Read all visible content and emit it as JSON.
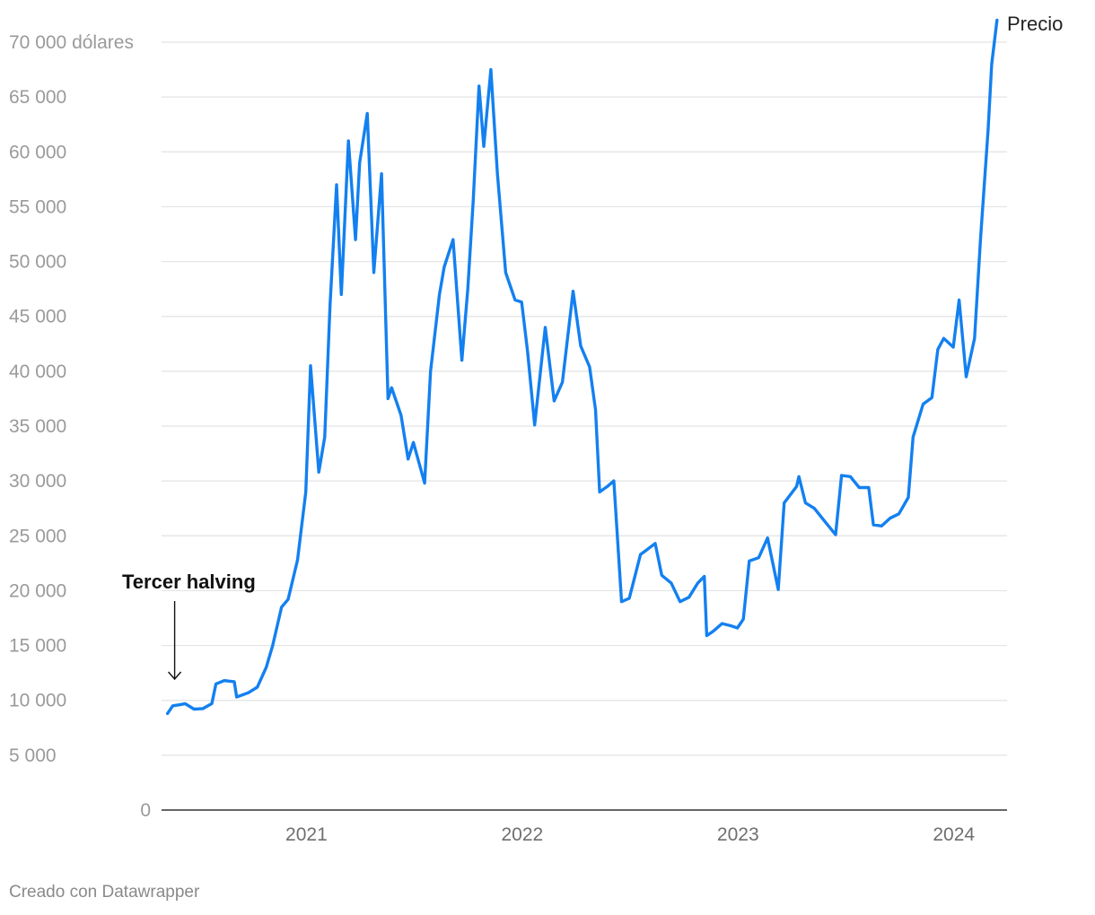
{
  "chart_data": {
    "type": "line",
    "title": "",
    "xlabel": "",
    "ylabel": "",
    "xlim": [
      "2020-05-01",
      "2024-03-31"
    ],
    "ylim": [
      0,
      70000
    ],
    "grid": true,
    "y_ticks": [
      {
        "value": 0,
        "label": "0"
      },
      {
        "value": 5000,
        "label": "5 000"
      },
      {
        "value": 10000,
        "label": "10 000"
      },
      {
        "value": 15000,
        "label": "15 000"
      },
      {
        "value": 20000,
        "label": "20 000"
      },
      {
        "value": 25000,
        "label": "25 000"
      },
      {
        "value": 30000,
        "label": "30 000"
      },
      {
        "value": 35000,
        "label": "35 000"
      },
      {
        "value": 40000,
        "label": "40 000"
      },
      {
        "value": 45000,
        "label": "45 000"
      },
      {
        "value": 50000,
        "label": "50 000"
      },
      {
        "value": 55000,
        "label": "55 000"
      },
      {
        "value": 60000,
        "label": "60 000"
      },
      {
        "value": 65000,
        "label": "65 000"
      },
      {
        "value": 70000,
        "label": "70 000 dólares"
      }
    ],
    "x_ticks": [
      {
        "value": "2021-01-01",
        "label": "2021"
      },
      {
        "value": "2022-01-01",
        "label": "2022"
      },
      {
        "value": "2023-01-01",
        "label": "2023"
      },
      {
        "value": "2024-01-01",
        "label": "2024"
      }
    ],
    "series": [
      {
        "name": "Precio",
        "color": "#1380f0",
        "points": [
          [
            "2020-05-11",
            8800
          ],
          [
            "2020-05-20",
            9500
          ],
          [
            "2020-06-01",
            9600
          ],
          [
            "2020-06-10",
            9700
          ],
          [
            "2020-06-25",
            9200
          ],
          [
            "2020-07-10",
            9250
          ],
          [
            "2020-07-25",
            9700
          ],
          [
            "2020-08-01",
            11500
          ],
          [
            "2020-08-15",
            11800
          ],
          [
            "2020-09-01",
            11700
          ],
          [
            "2020-09-05",
            10300
          ],
          [
            "2020-09-25",
            10700
          ],
          [
            "2020-10-10",
            11200
          ],
          [
            "2020-10-25",
            13000
          ],
          [
            "2020-11-05",
            15000
          ],
          [
            "2020-11-20",
            18500
          ],
          [
            "2020-12-01",
            19200
          ],
          [
            "2020-12-17",
            22800
          ],
          [
            "2020-12-31",
            29000
          ],
          [
            "2021-01-08",
            40500
          ],
          [
            "2021-01-22",
            30800
          ],
          [
            "2021-02-01",
            34000
          ],
          [
            "2021-02-10",
            46000
          ],
          [
            "2021-02-21",
            57000
          ],
          [
            "2021-03-01",
            47000
          ],
          [
            "2021-03-13",
            61000
          ],
          [
            "2021-03-25",
            52000
          ],
          [
            "2021-04-01",
            59000
          ],
          [
            "2021-04-14",
            63500
          ],
          [
            "2021-04-25",
            49000
          ],
          [
            "2021-05-08",
            58000
          ],
          [
            "2021-05-19",
            37500
          ],
          [
            "2021-05-25",
            38500
          ],
          [
            "2021-06-10",
            36000
          ],
          [
            "2021-06-22",
            32000
          ],
          [
            "2021-07-01",
            33500
          ],
          [
            "2021-07-20",
            29800
          ],
          [
            "2021-07-30",
            40000
          ],
          [
            "2021-08-14",
            47000
          ],
          [
            "2021-08-22",
            49500
          ],
          [
            "2021-09-06",
            52000
          ],
          [
            "2021-09-21",
            41000
          ],
          [
            "2021-10-01",
            47500
          ],
          [
            "2021-10-10",
            55500
          ],
          [
            "2021-10-20",
            66000
          ],
          [
            "2021-10-28",
            60500
          ],
          [
            "2021-11-09",
            67500
          ],
          [
            "2021-11-20",
            58000
          ],
          [
            "2021-12-04",
            49000
          ],
          [
            "2021-12-20",
            46500
          ],
          [
            "2021-12-31",
            46300
          ],
          [
            "2022-01-10",
            41800
          ],
          [
            "2022-01-22",
            35100
          ],
          [
            "2022-02-09",
            44000
          ],
          [
            "2022-02-24",
            37300
          ],
          [
            "2022-03-10",
            39000
          ],
          [
            "2022-03-28",
            47300
          ],
          [
            "2022-04-10",
            42300
          ],
          [
            "2022-04-25",
            40400
          ],
          [
            "2022-05-05",
            36500
          ],
          [
            "2022-05-12",
            29000
          ],
          [
            "2022-05-25",
            29500
          ],
          [
            "2022-06-05",
            30000
          ],
          [
            "2022-06-18",
            19000
          ],
          [
            "2022-07-01",
            19300
          ],
          [
            "2022-07-20",
            23300
          ],
          [
            "2022-07-30",
            23700
          ],
          [
            "2022-08-14",
            24300
          ],
          [
            "2022-08-25",
            21400
          ],
          [
            "2022-09-10",
            20700
          ],
          [
            "2022-09-25",
            19000
          ],
          [
            "2022-10-10",
            19400
          ],
          [
            "2022-10-25",
            20700
          ],
          [
            "2022-11-05",
            21300
          ],
          [
            "2022-11-09",
            15900
          ],
          [
            "2022-11-20",
            16300
          ],
          [
            "2022-12-05",
            17000
          ],
          [
            "2022-12-20",
            16800
          ],
          [
            "2022-12-31",
            16600
          ],
          [
            "2023-01-10",
            17400
          ],
          [
            "2023-01-20",
            22700
          ],
          [
            "2023-02-05",
            23000
          ],
          [
            "2023-02-20",
            24800
          ],
          [
            "2023-03-10",
            20100
          ],
          [
            "2023-03-20",
            28000
          ],
          [
            "2023-04-10",
            29500
          ],
          [
            "2023-04-14",
            30400
          ],
          [
            "2023-04-25",
            28000
          ],
          [
            "2023-05-10",
            27500
          ],
          [
            "2023-05-25",
            26500
          ],
          [
            "2023-06-15",
            25100
          ],
          [
            "2023-06-25",
            30500
          ],
          [
            "2023-07-10",
            30400
          ],
          [
            "2023-07-25",
            29400
          ],
          [
            "2023-08-10",
            29400
          ],
          [
            "2023-08-18",
            26000
          ],
          [
            "2023-09-01",
            25900
          ],
          [
            "2023-09-15",
            26600
          ],
          [
            "2023-09-30",
            27000
          ],
          [
            "2023-10-16",
            28500
          ],
          [
            "2023-10-24",
            34000
          ],
          [
            "2023-11-10",
            37000
          ],
          [
            "2023-11-25",
            37600
          ],
          [
            "2023-12-05",
            42000
          ],
          [
            "2023-12-15",
            43000
          ],
          [
            "2023-12-31",
            42200
          ],
          [
            "2024-01-10",
            46500
          ],
          [
            "2024-01-22",
            39500
          ],
          [
            "2024-02-05",
            43000
          ],
          [
            "2024-02-15",
            52000
          ],
          [
            "2024-02-28",
            62000
          ],
          [
            "2024-03-05",
            68000
          ],
          [
            "2024-03-14",
            72000
          ]
        ]
      }
    ],
    "annotations": [
      {
        "text": "Tercer halving",
        "x": "2020-05-11",
        "arrow": "down"
      }
    ]
  },
  "footer": {
    "credit": "Creado con Datawrapper"
  }
}
